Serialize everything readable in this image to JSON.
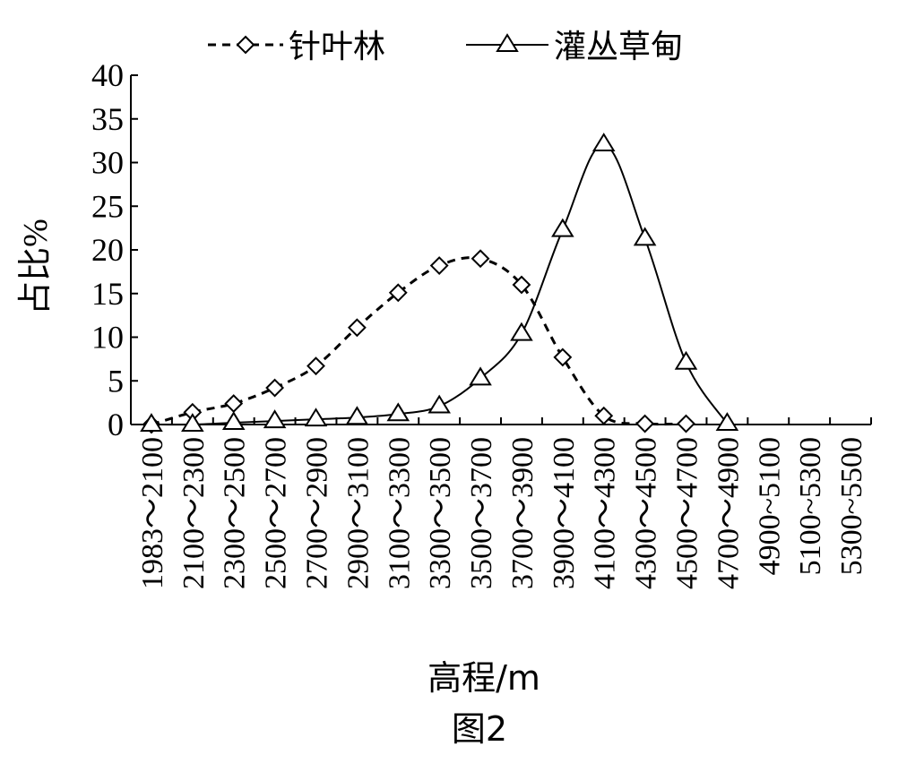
{
  "chart_data": {
    "type": "line",
    "figure_caption": "图2",
    "xlabel": "高程/m",
    "ylabel": "占比%",
    "ylim": [
      0,
      40
    ],
    "yticks": [
      0,
      5,
      10,
      15,
      20,
      25,
      30,
      35,
      40
    ],
    "categories": [
      "1983～2100",
      "2100～2300",
      "2300～2500",
      "2500～2700",
      "2700～2900",
      "2900～3100",
      "3100～3300",
      "3300～3500",
      "3500～3700",
      "3700～3900",
      "3900～4100",
      "4100～4300",
      "4300～4500",
      "4500～4700",
      "4700～4900",
      "4900~5100",
      "5100~5300",
      "5300~5500"
    ],
    "legend_position": "top",
    "series": [
      {
        "name": "针叶林",
        "line_style": "dashed",
        "marker": "diamond",
        "color": "#000000",
        "values": [
          0,
          1.4,
          2.4,
          4.2,
          6.7,
          11.1,
          15.1,
          18.2,
          19.0,
          16.0,
          7.7,
          1.0,
          0.1,
          0.1,
          null,
          null,
          null,
          null
        ]
      },
      {
        "name": "灌丛草甸",
        "line_style": "solid",
        "marker": "triangle",
        "color": "#000000",
        "values": [
          0,
          0,
          0.2,
          0.4,
          0.6,
          0.8,
          1.2,
          2.1,
          5.3,
          10.4,
          22.3,
          32.1,
          21.3,
          7.1,
          0.1,
          null,
          null,
          null
        ]
      }
    ]
  }
}
